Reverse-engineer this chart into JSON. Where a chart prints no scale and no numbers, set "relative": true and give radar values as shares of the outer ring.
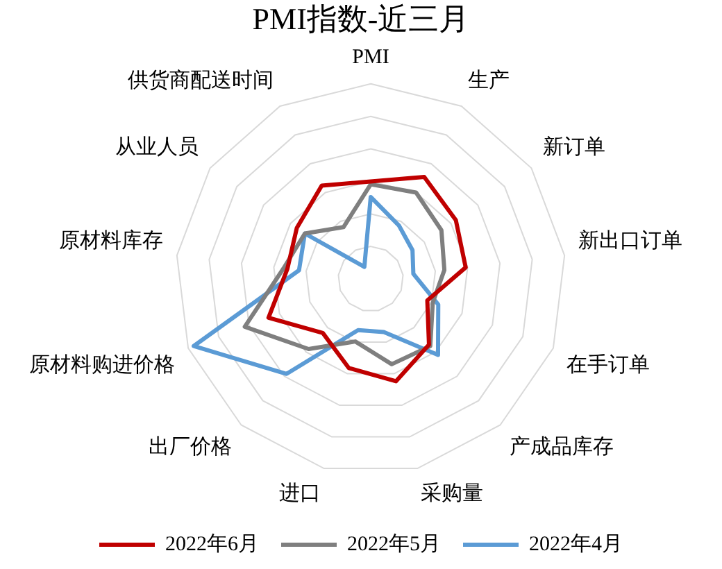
{
  "chart_data": {
    "type": "radar",
    "title": "PMI指数-近三月",
    "categories": [
      "PMI",
      "生产",
      "新订单",
      "新出口订单",
      "在手订单",
      "产成品库存",
      "采购量",
      "进口",
      "出厂价格",
      "原材料购进价格",
      "原材料库存",
      "从业人员",
      "供货商配送时间"
    ],
    "relative": true,
    "grid": true,
    "legend": "bottom",
    "marker": "none",
    "line_style": "solid",
    "series": [
      {
        "name": "2022年6月",
        "color": "#c00000",
        "values": [
          0.5,
          0.59,
          0.53,
          0.49,
          0.31,
          0.45,
          0.54,
          0.47,
          0.37,
          0.56,
          0.43,
          0.46,
          0.54
        ]
      },
      {
        "name": "2022年5月",
        "color": "#7f7f7f",
        "values": [
          0.485,
          0.5,
          0.44,
          0.38,
          0.34,
          0.46,
          0.45,
          0.33,
          0.48,
          0.69,
          0.45,
          0.41,
          0.3
        ]
      },
      {
        "name": "2022年4月",
        "color": "#5b9bd5",
        "values": [
          0.42,
          0.31,
          0.26,
          0.22,
          0.37,
          0.52,
          0.28,
          0.27,
          0.65,
          0.97,
          0.37,
          0.41,
          0.07
        ]
      }
    ]
  }
}
